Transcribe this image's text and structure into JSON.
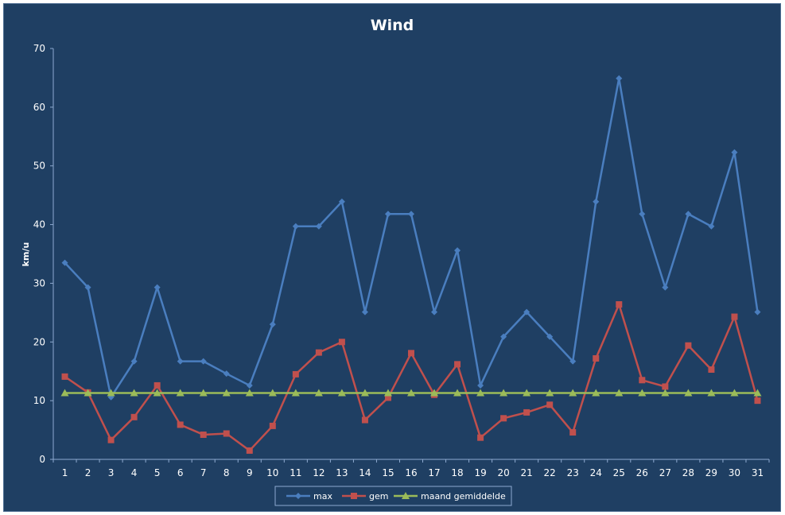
{
  "chart_data": {
    "type": "line",
    "title": "Wind",
    "xlabel": "",
    "ylabel": "km/u",
    "ylim": [
      0,
      70
    ],
    "yticks": [
      0,
      10,
      20,
      30,
      40,
      50,
      60,
      70
    ],
    "categories": [
      "1",
      "2",
      "3",
      "4",
      "5",
      "6",
      "7",
      "8",
      "9",
      "10",
      "11",
      "12",
      "13",
      "14",
      "15",
      "16",
      "17",
      "18",
      "19",
      "20",
      "21",
      "22",
      "23",
      "24",
      "25",
      "26",
      "27",
      "28",
      "29",
      "30",
      "31"
    ],
    "grid": false,
    "legend": "bottom",
    "series": [
      {
        "name": "max",
        "color": "#4a7ebf",
        "marker": "diamond",
        "values": [
          33.5,
          29.3,
          10.6,
          16.7,
          29.3,
          16.7,
          16.7,
          14.6,
          12.6,
          23.0,
          39.7,
          39.7,
          43.9,
          25.1,
          41.8,
          41.8,
          25.1,
          35.6,
          12.6,
          20.9,
          25.1,
          20.9,
          16.7,
          43.9,
          64.9,
          41.8,
          29.3,
          41.8,
          39.7,
          52.3,
          25.1
        ]
      },
      {
        "name": "gem",
        "color": "#c0504d",
        "marker": "square",
        "values": [
          14.1,
          11.4,
          3.3,
          7.2,
          12.6,
          5.9,
          4.2,
          4.4,
          1.5,
          5.7,
          14.5,
          18.2,
          20.0,
          6.7,
          10.5,
          18.1,
          11.0,
          16.2,
          3.7,
          7.0,
          8.0,
          9.3,
          4.6,
          17.2,
          26.4,
          13.5,
          12.4,
          19.4,
          15.3,
          24.3,
          10.0
        ]
      },
      {
        "name": "maand gemiddelde",
        "color": "#9bbb59",
        "marker": "triangle",
        "values": [
          11.3,
          11.3,
          11.3,
          11.3,
          11.3,
          11.3,
          11.3,
          11.3,
          11.3,
          11.3,
          11.3,
          11.3,
          11.3,
          11.3,
          11.3,
          11.3,
          11.3,
          11.3,
          11.3,
          11.3,
          11.3,
          11.3,
          11.3,
          11.3,
          11.3,
          11.3,
          11.3,
          11.3,
          11.3,
          11.3,
          11.3
        ]
      }
    ]
  }
}
